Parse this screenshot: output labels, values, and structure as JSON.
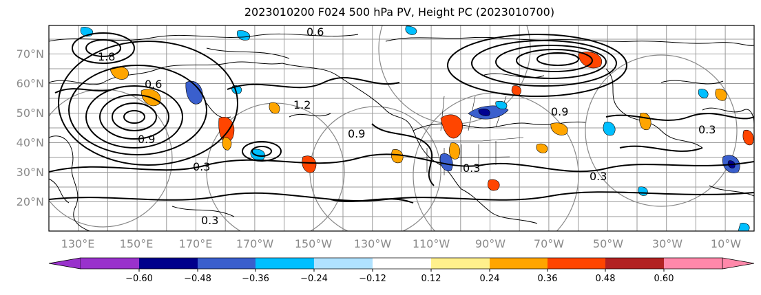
{
  "title": "2023010200 F024 500 hPa PV, Height PC (2023010700)",
  "map": {
    "lat_ticks": [
      "70°N",
      "60°N",
      "50°N",
      "40°N",
      "30°N",
      "20°N"
    ],
    "lon_ticks": [
      "130°E",
      "150°E",
      "170°E",
      "170°W",
      "150°W",
      "130°W",
      "110°W",
      "90°W",
      "70°W",
      "50°W",
      "30°W",
      "10°W"
    ],
    "contour_labels": [
      "1.8",
      "0.9",
      "0.6",
      "1.2",
      "0.9",
      "0.3",
      "0.3",
      "0.6",
      "0.9",
      "0.3",
      "0.3",
      "0.3"
    ],
    "colors": {
      "cool": [
        "#00bfff",
        "#3a5fcd",
        "#000090"
      ],
      "warm": [
        "#ffa500",
        "#ff4500",
        "#b22222"
      ]
    }
  },
  "colorbar": {
    "labels": [
      "−0.60",
      "−0.48",
      "−0.36",
      "−0.24",
      "−0.12",
      "0.12",
      "0.24",
      "0.36",
      "0.48",
      "0.60"
    ],
    "colors": [
      "#9932cc",
      "#00008b",
      "#3a5fcd",
      "#00bfff",
      "#b0e2ff",
      "#ffffff",
      "#fff08c",
      "#ffa500",
      "#ff4500",
      "#b22222",
      "#ff88aa"
    ]
  }
}
